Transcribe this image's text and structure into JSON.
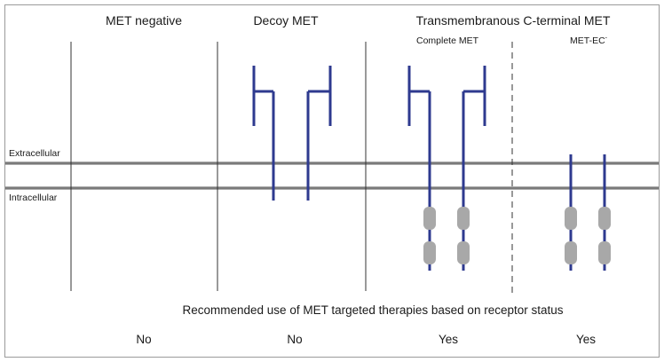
{
  "columns": [
    {
      "title": "MET negative"
    },
    {
      "title": "Decoy MET"
    },
    {
      "title": "Transmembranous C-terminal MET"
    }
  ],
  "subcolumns": [
    {
      "title": "Complete MET"
    },
    {
      "title": "MET-EC",
      "superscript": "-"
    }
  ],
  "membrane": {
    "outer_label": "Extracellular",
    "inner_label": "Intracellular",
    "color": "#7a7a7a"
  },
  "receptor_color": "#2e3a8f",
  "kinase_color": "#a8a8a8",
  "caption": "Recommended use of MET targeted therapies based on receptor status",
  "answers": [
    "No",
    "No",
    "Yes",
    "Yes"
  ]
}
